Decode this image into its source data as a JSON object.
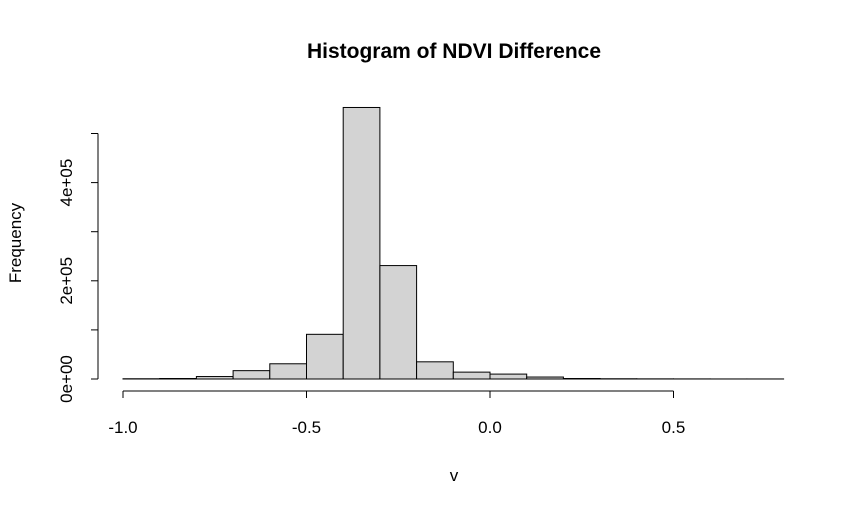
{
  "chart_data": {
    "type": "bar",
    "title": "Histogram of NDVI Difference",
    "xlabel": "v",
    "ylabel": "Frequency",
    "bins": [
      [
        -1.0,
        -0.9
      ],
      [
        -0.9,
        -0.8
      ],
      [
        -0.8,
        -0.7
      ],
      [
        -0.7,
        -0.6
      ],
      [
        -0.6,
        -0.5
      ],
      [
        -0.5,
        -0.4
      ],
      [
        -0.4,
        -0.3
      ],
      [
        -0.3,
        -0.2
      ],
      [
        -0.2,
        -0.1
      ],
      [
        -0.1,
        0.0
      ],
      [
        0.0,
        0.1
      ],
      [
        0.1,
        0.2
      ],
      [
        0.2,
        0.3
      ],
      [
        0.3,
        0.4
      ],
      [
        0.4,
        0.5
      ],
      [
        0.5,
        0.6
      ],
      [
        0.6,
        0.7
      ],
      [
        0.7,
        0.8
      ]
    ],
    "values": [
      500,
      1000,
      5000,
      17000,
      31000,
      91000,
      553000,
      231000,
      35000,
      14000,
      10000,
      4000,
      1000,
      500,
      300,
      200,
      100,
      100
    ],
    "xlim": [
      -1.0,
      0.8
    ],
    "ylim": [
      0,
      500000
    ],
    "x_ticks": [
      -1.0,
      -0.5,
      0.0,
      0.5
    ],
    "x_tick_labels": [
      "-1.0",
      "-0.5",
      "0.0",
      "0.5"
    ],
    "y_ticks": [
      0,
      100000,
      200000,
      300000,
      400000,
      500000
    ],
    "y_tick_labels": [
      "0e+00",
      "",
      "2e+05",
      "",
      "4e+05",
      ""
    ],
    "grid": false,
    "colors": {
      "bar_fill": "#d3d3d3",
      "bar_stroke": "#000000"
    }
  }
}
